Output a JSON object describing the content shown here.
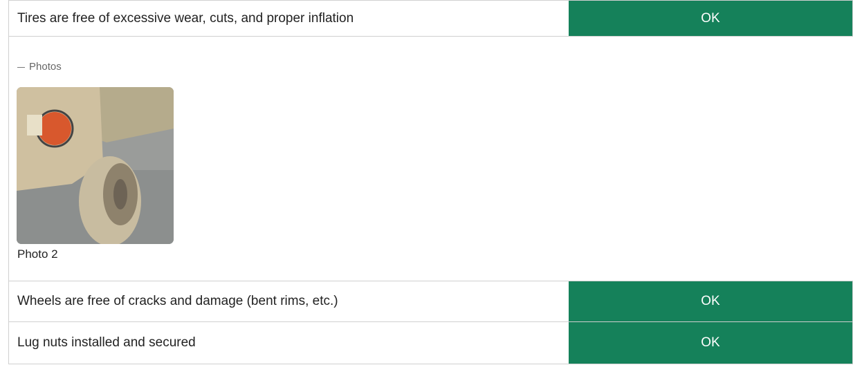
{
  "items": [
    {
      "label": "Tires are free of excessive wear, cuts, and proper inflation",
      "status": "OK"
    },
    {
      "label": "Wheels are free of cracks and damage (bent rims, etc.)",
      "status": "OK"
    },
    {
      "label": "Lug nuts installed and secured",
      "status": "OK"
    }
  ],
  "photos": {
    "heading": "Photos",
    "captions": [
      "Photo 2"
    ]
  }
}
